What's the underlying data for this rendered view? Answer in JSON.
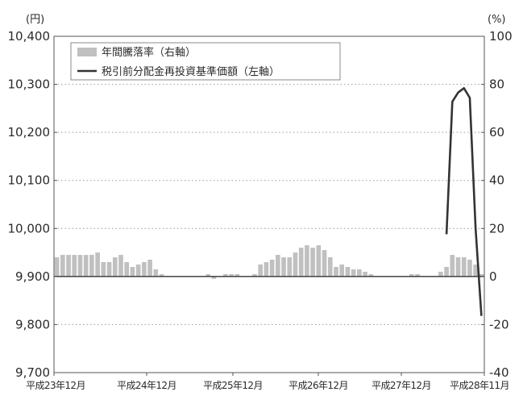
{
  "chart_data": {
    "type": "bar+line",
    "left_unit": "(円)",
    "right_unit": "(%)",
    "left_axis": {
      "ticks": [
        "10,400",
        "10,300",
        "10,200",
        "10,100",
        "10,000",
        "9,900",
        "9,800",
        "9,700"
      ],
      "ylim": [
        9700,
        10400
      ]
    },
    "right_axis": {
      "ticks": [
        "100",
        "80",
        "60",
        "40",
        "20",
        "0",
        "-20",
        "-40"
      ],
      "ylim": [
        -40,
        100
      ]
    },
    "x_ticks": [
      "平成23年12月",
      "平成24年12月",
      "平成25年12月",
      "平成26年12月",
      "平成27年12月",
      "平成28年11月"
    ],
    "legend": {
      "bar_label": "年間騰落率（右軸）",
      "line_label": "税引前分配金再投資基準価額（左軸）",
      "placement": "top-left"
    },
    "bar_series": {
      "name": "年間騰落率（右軸）",
      "axis": "right",
      "values": [
        8,
        9,
        9,
        9,
        9,
        9,
        9,
        10,
        6,
        6,
        8,
        9,
        6,
        4,
        5,
        6,
        7,
        3,
        1,
        0,
        0,
        0,
        0,
        0,
        0,
        0,
        1,
        -1,
        0,
        1,
        1,
        1,
        0,
        0,
        1,
        5,
        6,
        7,
        9,
        8,
        8,
        10,
        12,
        13,
        12,
        13,
        11,
        8,
        4,
        5,
        4,
        3,
        3,
        2,
        1,
        0,
        0,
        0,
        0,
        0,
        0,
        1,
        1,
        0,
        0,
        0,
        2,
        4,
        9,
        8,
        8,
        7,
        5,
        1
      ],
      "color": "#c0c0c0"
    },
    "line_series": {
      "name": "税引前分配金再投資基準価額（左軸）",
      "axis": "left",
      "x_index": [
        67,
        68,
        69,
        70,
        71,
        72,
        73
      ],
      "values": [
        9988,
        10264,
        10283,
        10292,
        10272,
        10000,
        9818
      ],
      "color": "#333333"
    },
    "grid": "horizontal-dotted"
  }
}
